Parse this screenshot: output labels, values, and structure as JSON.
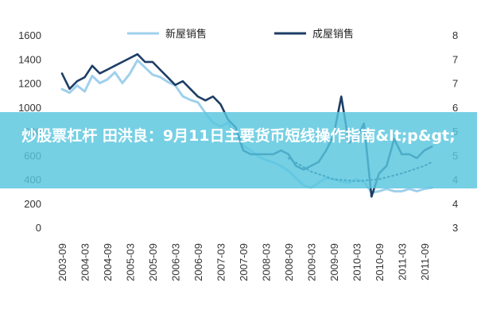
{
  "banner": {
    "title": "炒股票杠杆 田洪良：9月11日主要货币短线操作指南&lt;p&gt;"
  },
  "colors": {
    "banner_bg": "#58c6de",
    "new_homes": "#9fd0ec",
    "existing_homes": "#1d3d66",
    "trend": "#1d3d66"
  },
  "chart_data": {
    "type": "line",
    "title": "",
    "xlabel": "",
    "ylabel_left": "",
    "ylabel_right": "",
    "y_left_lim": [
      0,
      1600
    ],
    "y_left_ticks": [
      "0",
      "200",
      "400",
      "600",
      "800",
      "1000",
      "1200",
      "1400",
      "1600"
    ],
    "y_right_lim": [
      3,
      8
    ],
    "y_right_ticks": [
      "3",
      "4",
      "4",
      "5",
      "5",
      "6",
      "7",
      "7",
      "8"
    ],
    "x_ticks": [
      "2003-09",
      "2004-03",
      "2004-09",
      "2005-03",
      "2005-09",
      "2006-03",
      "2006-09",
      "2007-03",
      "2007-09",
      "2008-03",
      "2008-09",
      "2009-03",
      "2009-09",
      "2010-03",
      "2010-09",
      "2011-03",
      "2011-09"
    ],
    "legend_position": "top",
    "grid": false,
    "series": [
      {
        "name": "新屋销售",
        "axis": "left",
        "x": [
          "2003-09",
          "2003-11",
          "2004-01",
          "2004-03",
          "2004-05",
          "2004-07",
          "2004-09",
          "2004-11",
          "2005-01",
          "2005-03",
          "2005-05",
          "2005-07",
          "2005-09",
          "2005-11",
          "2006-01",
          "2006-03",
          "2006-05",
          "2006-07",
          "2006-09",
          "2006-11",
          "2007-01",
          "2007-03",
          "2007-05",
          "2007-07",
          "2007-09",
          "2007-11",
          "2008-01",
          "2008-03",
          "2008-05",
          "2008-07",
          "2008-09",
          "2008-11",
          "2009-01",
          "2009-03",
          "2009-05",
          "2009-07",
          "2009-09",
          "2009-11",
          "2010-01",
          "2010-03",
          "2010-05",
          "2010-07",
          "2010-09",
          "2010-11",
          "2011-01",
          "2011-03",
          "2011-05",
          "2011-07",
          "2011-09",
          "2011-11"
        ],
        "values": [
          1150,
          1120,
          1180,
          1130,
          1260,
          1200,
          1230,
          1290,
          1200,
          1280,
          1390,
          1330,
          1270,
          1250,
          1210,
          1180,
          1090,
          1060,
          1040,
          950,
          870,
          840,
          870,
          770,
          680,
          640,
          590,
          560,
          540,
          510,
          470,
          410,
          350,
          330,
          370,
          410,
          400,
          380,
          370,
          400,
          380,
          290,
          300,
          320,
          300,
          300,
          320,
          300,
          320,
          330
        ]
      },
      {
        "name": "成屋销售",
        "axis": "right",
        "x": [
          "2003-09",
          "2003-11",
          "2004-01",
          "2004-03",
          "2004-05",
          "2004-07",
          "2004-09",
          "2004-11",
          "2005-01",
          "2005-03",
          "2005-05",
          "2005-07",
          "2005-09",
          "2005-11",
          "2006-01",
          "2006-03",
          "2006-05",
          "2006-07",
          "2006-09",
          "2006-11",
          "2007-01",
          "2007-03",
          "2007-05",
          "2007-07",
          "2007-09",
          "2007-11",
          "2008-01",
          "2008-03",
          "2008-05",
          "2008-07",
          "2008-09",
          "2008-11",
          "2009-01",
          "2009-03",
          "2009-05",
          "2009-07",
          "2009-09",
          "2009-11",
          "2010-01",
          "2010-03",
          "2010-05",
          "2010-07",
          "2010-09",
          "2010-11",
          "2011-01",
          "2011-03",
          "2011-05",
          "2011-07",
          "2011-09",
          "2011-11"
        ],
        "values": [
          7.0,
          6.6,
          6.8,
          6.9,
          7.2,
          7.0,
          7.1,
          7.2,
          7.3,
          7.4,
          7.5,
          7.3,
          7.3,
          7.1,
          6.9,
          6.7,
          6.8,
          6.6,
          6.4,
          6.3,
          6.4,
          6.2,
          5.8,
          5.6,
          5.0,
          4.9,
          4.9,
          4.9,
          4.9,
          5.0,
          4.9,
          4.6,
          4.5,
          4.6,
          4.7,
          5.0,
          5.4,
          6.4,
          5.2,
          5.3,
          5.7,
          3.8,
          4.4,
          4.6,
          5.3,
          4.9,
          4.9,
          4.8,
          5.0,
          5.1
        ]
      },
      {
        "name": "",
        "axis": "right",
        "style": "dotted-trend",
        "x": [
          "2008-09",
          "2009-03",
          "2009-09",
          "2010-03",
          "2010-09",
          "2011-03",
          "2011-09",
          "2011-11"
        ],
        "values": [
          4.8,
          4.45,
          4.25,
          4.2,
          4.25,
          4.4,
          4.6,
          4.7
        ]
      }
    ]
  }
}
